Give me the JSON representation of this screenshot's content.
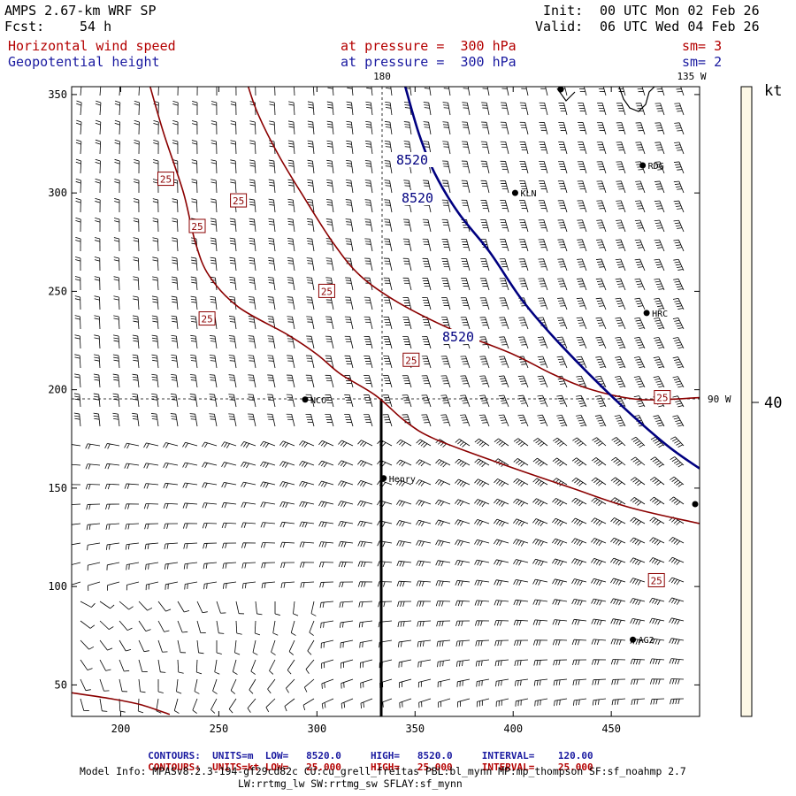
{
  "header": {
    "model": "AMPS 2.67-km WRF SP",
    "fcst_label": "Fcst:",
    "fcst_value": "54 h",
    "init_label": "Init:",
    "init_value": "00 UTC Mon 02 Feb 26",
    "valid_label": "Valid:",
    "valid_value": "06 UTC Wed 04 Feb 26",
    "field1": "Horizontal wind speed",
    "field1_level": "at pressure =  300 hPa",
    "field1_sm": "sm= 3",
    "field2": "Geopotential height",
    "field2_level": "at pressure =  300 hPa",
    "field2_sm": "sm= 2"
  },
  "map_labels": {
    "lon_top_180": "180",
    "lon_top_135w": "135 W",
    "lon_right_90w": "90 W",
    "colorbar_unit": "kt",
    "colorbar_value": "40"
  },
  "stations": [
    {
      "name": "RDG",
      "x": 466,
      "y": 314
    },
    {
      "name": "KLN",
      "x": 401,
      "y": 300
    },
    {
      "name": "HRC",
      "x": 468,
      "y": 239
    },
    {
      "name": "NCO",
      "x": 294,
      "y": 195
    },
    {
      "name": "Henry",
      "x": 334,
      "y": 155
    },
    {
      "name": "AG2",
      "x": 461,
      "y": 73
    }
  ],
  "footer": {
    "row1_label": "CONTOURS:",
    "row1_units": "UNITS=m",
    "row1_low": "LOW=   8520.0",
    "row1_high": "HIGH=   8520.0",
    "row1_interval": "INTERVAL=    120.00",
    "row2_label": "CONTOURS:",
    "row2_units": "UNITS=kt",
    "row2_low": "LOW=   25.000",
    "row2_high": "HIGH=   25.000",
    "row2_interval": "INTERVAL=    25.000",
    "model_info": "Model Info: MPASv8.2.3-194-gf29cd82c CU:cu_grell_freitas PBL:bl_mynn MP:mp_thompson SF:sf_noahmp 2.7",
    "model_info2": "LW:rrtmg_lw SW:rrtmg_sw SFLAY:sf_mynn"
  },
  "colors": {
    "wind_contour": "#8b0000",
    "height_contour": "#000080",
    "colorbar": "#fdf8e6"
  },
  "chart_data": {
    "type": "contour",
    "x_ticks": [
      "200",
      "250",
      "300",
      "350",
      "400",
      "450"
    ],
    "y_ticks": [
      "50",
      "100",
      "150",
      "200",
      "250",
      "300",
      "350"
    ],
    "xlim": [
      175,
      495
    ],
    "ylim": [
      34,
      354
    ],
    "height_contour_label": "8520",
    "height_contour_value": 8520,
    "height_contour": [
      [
        345,
        354
      ],
      [
        352,
        330
      ],
      [
        360,
        310
      ],
      [
        372,
        290
      ],
      [
        388,
        270
      ],
      [
        405,
        245
      ],
      [
        425,
        222
      ],
      [
        452,
        195
      ],
      [
        478,
        172
      ],
      [
        495,
        160
      ]
    ],
    "wind_contour_label": "25",
    "wind_contour_value": 25,
    "wind_contours": [
      [
        [
          215,
          354
        ],
        [
          222,
          330
        ],
        [
          232,
          300
        ],
        [
          238,
          275
        ],
        [
          245,
          258
        ],
        [
          260,
          242
        ],
        [
          285,
          228
        ],
        [
          300,
          218
        ],
        [
          312,
          208
        ],
        [
          330,
          197
        ],
        [
          345,
          184
        ],
        [
          360,
          175
        ],
        [
          395,
          162
        ],
        [
          430,
          150
        ],
        [
          460,
          140
        ],
        [
          495,
          132
        ]
      ],
      [
        [
          265,
          354
        ],
        [
          270,
          340
        ],
        [
          280,
          320
        ],
        [
          292,
          300
        ],
        [
          308,
          275
        ],
        [
          322,
          258
        ],
        [
          342,
          244
        ],
        [
          370,
          230
        ],
        [
          400,
          218
        ],
        [
          420,
          208
        ],
        [
          440,
          200
        ],
        [
          465,
          195
        ],
        [
          495,
          196
        ]
      ],
      [
        [
          175,
          46
        ],
        [
          195,
          43
        ],
        [
          210,
          40
        ],
        [
          225,
          35
        ]
      ]
    ],
    "wind_labels": [
      [
        223,
        307
      ],
      [
        260,
        296
      ],
      [
        239,
        283
      ],
      [
        244,
        236
      ],
      [
        305,
        250
      ],
      [
        348,
        215
      ],
      [
        476,
        196
      ],
      [
        473,
        103
      ]
    ]
  }
}
